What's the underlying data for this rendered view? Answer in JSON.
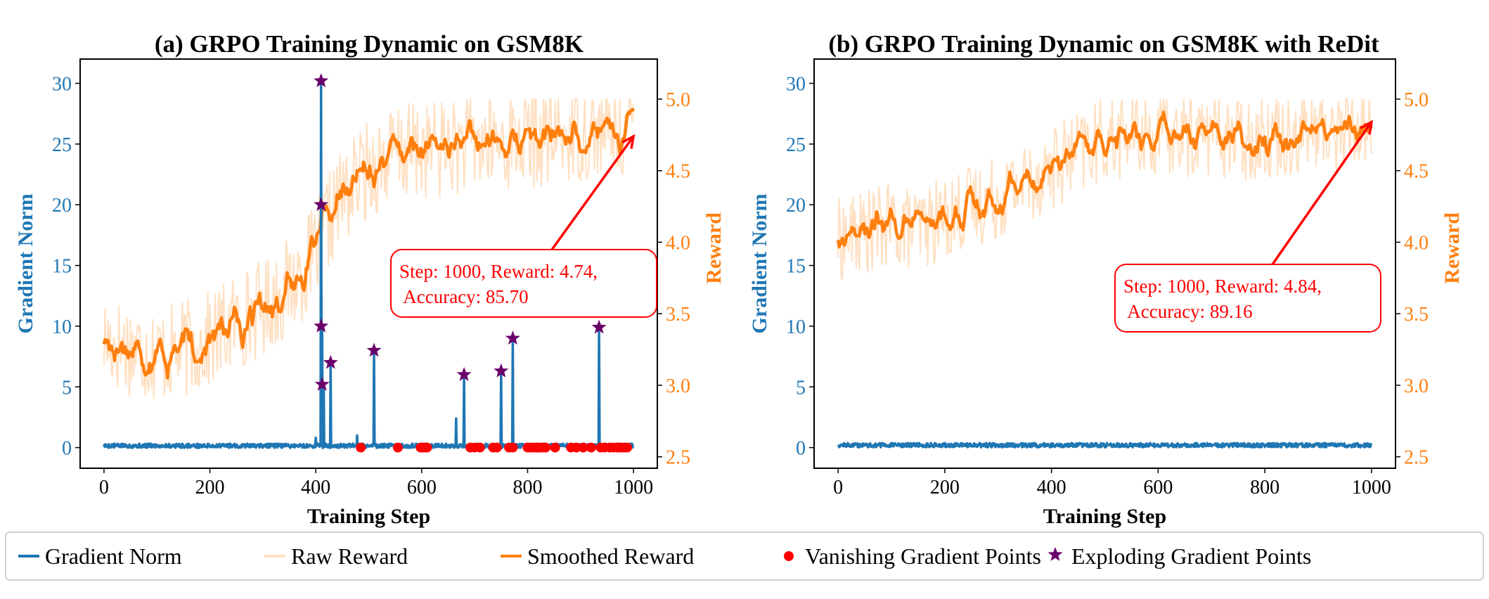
{
  "chart_data": [
    {
      "type": "line",
      "title": "(a) GRPO Training Dynamic on GSM8K",
      "xlabel": "Training Step",
      "ylabel_left": "Gradient Norm",
      "ylabel_right": "Reward",
      "xlim": [
        -45,
        1045
      ],
      "ylim_left": [
        -1.7,
        32
      ],
      "ylim_right": [
        2.42,
        5.28
      ],
      "xticks": [
        "0",
        "200",
        "400",
        "600",
        "800",
        "1000"
      ],
      "yticks_left": [
        "0",
        "5",
        "10",
        "15",
        "20",
        "25",
        "30"
      ],
      "yticks_right": [
        "2.5",
        "3.0",
        "3.5",
        "4.0",
        "4.5",
        "5.0"
      ],
      "reward_profile": {
        "x": [
          0,
          50,
          100,
          150,
          200,
          250,
          300,
          350,
          400,
          420,
          450,
          500,
          550,
          600,
          650,
          700,
          750,
          800,
          850,
          900,
          950,
          1000
        ],
        "smoothed": [
          3.35,
          3.3,
          3.25,
          3.28,
          3.35,
          3.48,
          3.58,
          3.72,
          3.95,
          4.15,
          4.35,
          4.55,
          4.65,
          4.68,
          4.7,
          4.72,
          4.73,
          4.75,
          4.78,
          4.8,
          4.82,
          4.84
        ],
        "noise_amplitude": 0.35,
        "raw_max": 5.0
      },
      "gradient_norm_baseline": 0.15,
      "gradient_spikes": [
        {
          "step": 400,
          "value": 0.8
        },
        {
          "step": 410,
          "value": 30.2
        },
        {
          "step": 412,
          "value": 10.0
        },
        {
          "step": 415,
          "value": 5.2
        },
        {
          "step": 428,
          "value": 7.0
        },
        {
          "step": 478,
          "value": 1.0
        },
        {
          "step": 510,
          "value": 8.0
        },
        {
          "step": 665,
          "value": 2.4
        },
        {
          "step": 680,
          "value": 6.0
        },
        {
          "step": 750,
          "value": 6.3
        },
        {
          "step": 772,
          "value": 9.0
        },
        {
          "step": 935,
          "value": 9.9
        }
      ],
      "exploding_points": [
        {
          "step": 410,
          "value": 30.2
        },
        {
          "step": 410,
          "value": 20.0
        },
        {
          "step": 410,
          "value": 10.0
        },
        {
          "step": 412,
          "value": 5.2
        },
        {
          "step": 428,
          "value": 7.0
        },
        {
          "step": 510,
          "value": 8.0
        },
        {
          "step": 680,
          "value": 6.0
        },
        {
          "step": 750,
          "value": 6.3
        },
        {
          "step": 772,
          "value": 9.0
        },
        {
          "step": 935,
          "value": 9.9
        }
      ],
      "vanishing_points": [
        485,
        555,
        598,
        602,
        606,
        610,
        692,
        700,
        710,
        735,
        742,
        765,
        772,
        800,
        806,
        812,
        818,
        822,
        828,
        834,
        852,
        882,
        892,
        905,
        920,
        938,
        945,
        955,
        962,
        970,
        976,
        982,
        988
      ],
      "annotation": {
        "line1": "Step: 1000, Reward: 4.74,",
        "line2": " Accuracy: 85.70",
        "target_step": 1000,
        "target_reward": 4.74
      }
    },
    {
      "type": "line",
      "title": "(b) GRPO Training Dynamic on GSM8K with ReDit",
      "xlabel": "Training Step",
      "ylabel_left": "Gradient Norm",
      "ylabel_right": "Reward",
      "xlim": [
        -45,
        1045
      ],
      "ylim_left": [
        -1.7,
        32
      ],
      "ylim_right": [
        2.42,
        5.28
      ],
      "xticks": [
        "0",
        "200",
        "400",
        "600",
        "800",
        "1000"
      ],
      "yticks_left": [
        "0",
        "5",
        "10",
        "15",
        "20",
        "25",
        "30"
      ],
      "yticks_right": [
        "2.5",
        "3.0",
        "3.5",
        "4.0",
        "4.5",
        "5.0"
      ],
      "reward_profile": {
        "x": [
          0,
          50,
          100,
          150,
          200,
          250,
          300,
          350,
          400,
          450,
          500,
          550,
          600,
          650,
          700,
          750,
          800,
          850,
          900,
          950,
          1000
        ],
        "smoothed": [
          4.05,
          4.1,
          4.15,
          4.12,
          4.2,
          4.28,
          4.35,
          4.45,
          4.55,
          4.65,
          4.75,
          4.78,
          4.77,
          4.78,
          4.8,
          4.75,
          4.78,
          4.8,
          4.82,
          4.82,
          4.87
        ],
        "noise_amplitude": 0.3,
        "raw_max": 5.0
      },
      "gradient_norm_baseline": 0.2,
      "gradient_spikes": [],
      "exploding_points": [],
      "vanishing_points": [],
      "annotation": {
        "line1": "Step: 1000, Reward: 4.84,",
        "line2": " Accuracy: 89.16",
        "target_step": 1000,
        "target_reward": 4.84
      }
    }
  ],
  "legend": {
    "items": [
      {
        "label": "Gradient Norm",
        "marker": "line",
        "color": "#1f77b4"
      },
      {
        "label": "Raw Reward",
        "marker": "line",
        "color": "#ffe0c2"
      },
      {
        "label": "Smoothed Reward",
        "marker": "line",
        "color": "#ff7f0e"
      },
      {
        "label": "Vanishing Gradient Points",
        "marker": "circle",
        "color": "#ff0000"
      },
      {
        "label": "Exploding Gradient Points",
        "marker": "star",
        "color": "#6a006a"
      }
    ],
    "placement": "bottom"
  },
  "colors": {
    "gradient": "#1f77b4",
    "raw_reward": "#ffe0c2",
    "smoothed_reward": "#ff7f0e",
    "vanishing": "#ff0000",
    "exploding": "#6a006a",
    "annotation": "#ff0000"
  }
}
